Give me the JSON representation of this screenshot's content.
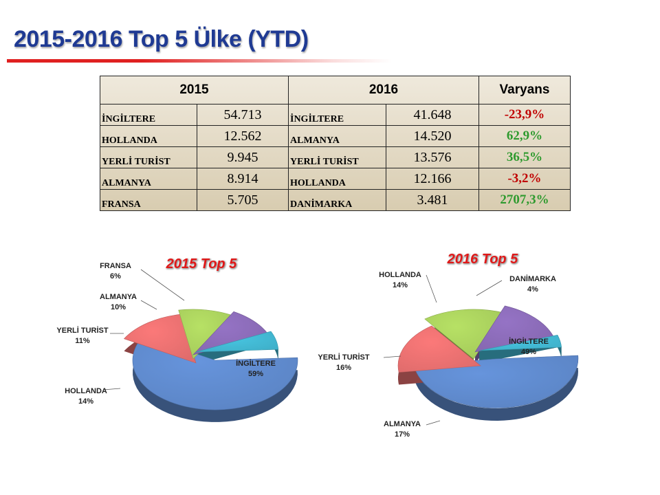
{
  "title": "2015-2016 Top 5 Ülke (YTD)",
  "table": {
    "headers": [
      "2015",
      "2016",
      "Varyans"
    ],
    "rows": [
      {
        "c2015": "İNGİLTERE",
        "v2015": "54.713",
        "c2016": "İNGİLTERE",
        "v2016": "41.648",
        "variance": "-23,9%",
        "sign": "neg"
      },
      {
        "c2015": "HOLLANDA",
        "v2015": "12.562",
        "c2016": "ALMANYA",
        "v2016": "14.520",
        "variance": "62,9%",
        "sign": "pos"
      },
      {
        "c2015": "YERLİ TURİST",
        "v2015": "9.945",
        "c2016": "YERLİ TURİST",
        "v2016": "13.576",
        "variance": "36,5%",
        "sign": "pos"
      },
      {
        "c2015": "ALMANYA",
        "v2015": "8.914",
        "c2016": "HOLLANDA",
        "v2016": "12.166",
        "variance": "-3,2%",
        "sign": "neg"
      },
      {
        "c2015": "FRANSA",
        "v2015": "5.705",
        "c2016": "DANİMARKA",
        "v2016": "3.481",
        "variance": "2707,3%",
        "sign": "pos"
      }
    ]
  },
  "chart_data": [
    {
      "type": "pie",
      "title": "2015 Top 5",
      "slices": [
        {
          "label": "İNGİLTERE",
          "pct": "59%",
          "value": 59,
          "color": "#5b84c4"
        },
        {
          "label": "HOLLANDA",
          "pct": "14%",
          "value": 14,
          "color": "#e06c6c"
        },
        {
          "label": "YERLİ TURİST",
          "pct": "11%",
          "value": 11,
          "color": "#a3c95a"
        },
        {
          "label": "ALMANYA",
          "pct": "10%",
          "value": 10,
          "color": "#8567b0"
        },
        {
          "label": "FRANSA",
          "pct": "6%",
          "value": 6,
          "color": "#3fb0c9"
        }
      ]
    },
    {
      "type": "pie",
      "title": "2016 Top 5",
      "slices": [
        {
          "label": "İNGİLTERE",
          "pct": "49%",
          "value": 49,
          "color": "#5b84c4"
        },
        {
          "label": "ALMANYA",
          "pct": "17%",
          "value": 17,
          "color": "#e06c6c"
        },
        {
          "label": "YERLİ TURİST",
          "pct": "16%",
          "value": 16,
          "color": "#a3c95a"
        },
        {
          "label": "HOLLANDA",
          "pct": "14%",
          "value": 14,
          "color": "#8567b0"
        },
        {
          "label": "DANİMARKA",
          "pct": "4%",
          "value": 4,
          "color": "#3fb0c9"
        }
      ]
    }
  ]
}
